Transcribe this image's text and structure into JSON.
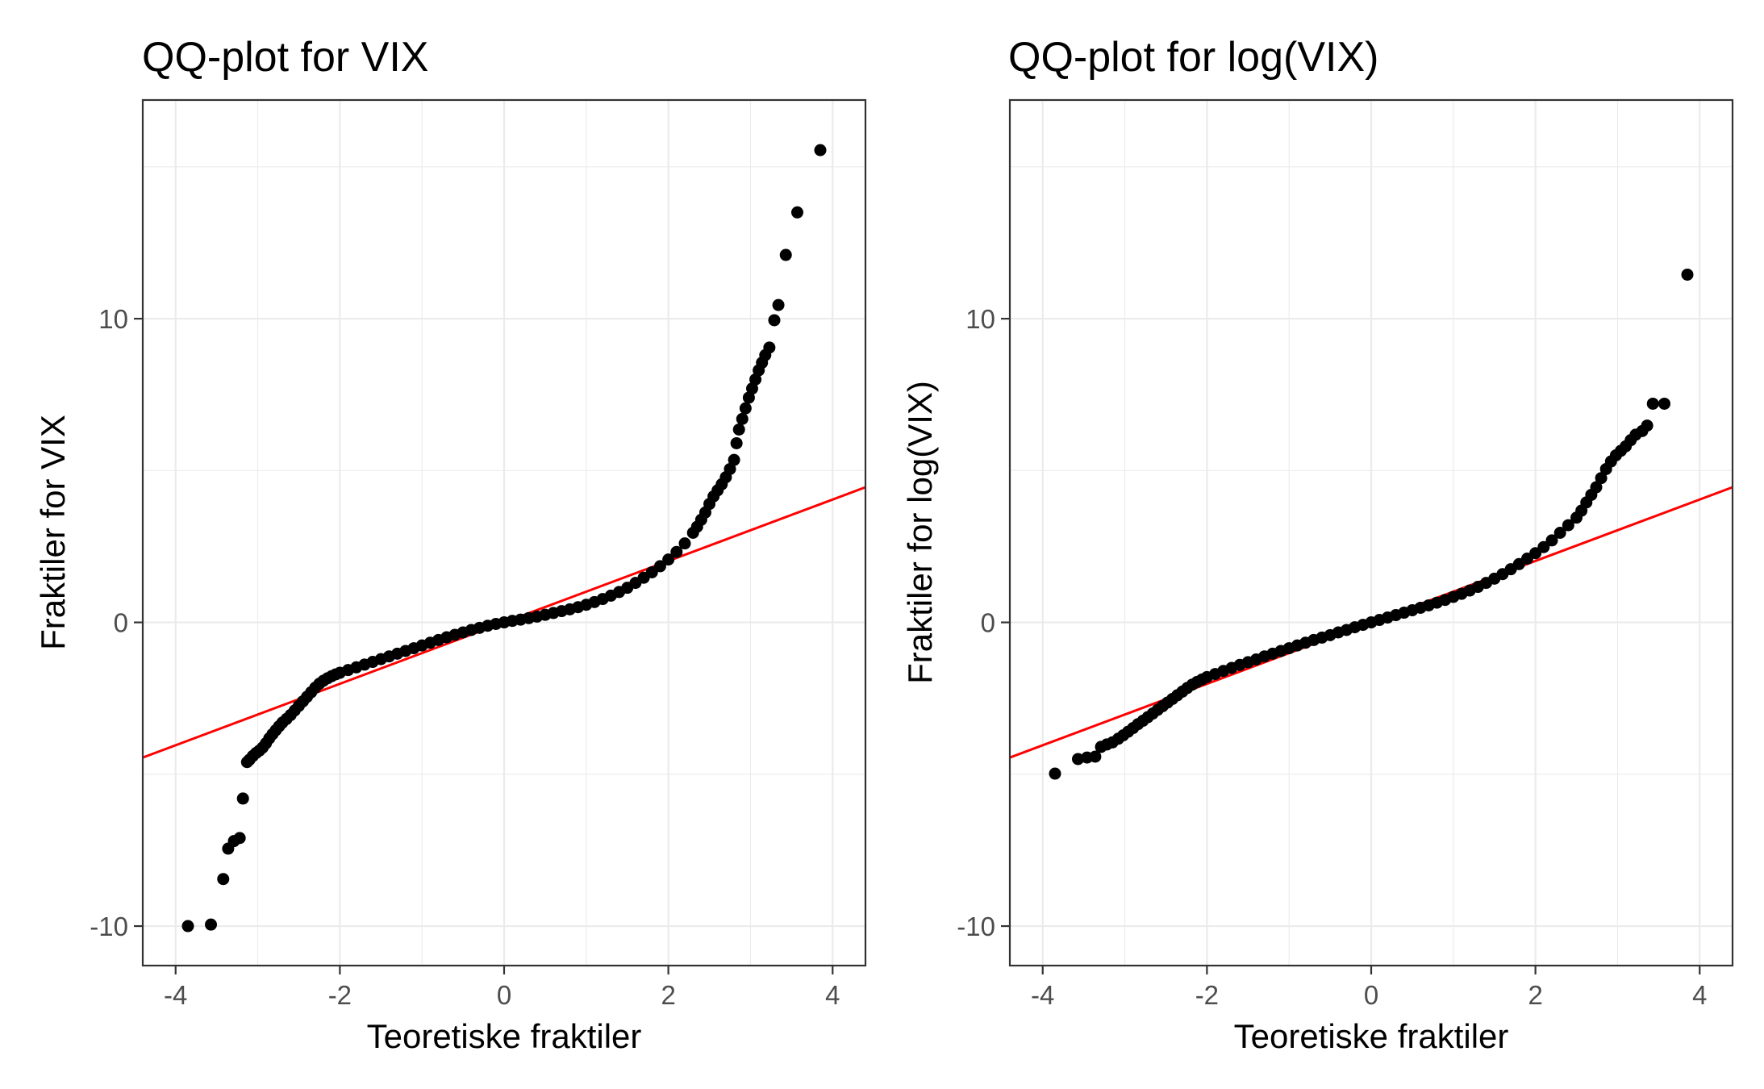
{
  "chart_data": [
    {
      "type": "scatter",
      "title": "QQ-plot for VIX",
      "xlabel": "Teoretiske fraktiler",
      "ylabel": "Fraktiler for VIX",
      "xlim": [
        -4.4,
        4.4
      ],
      "ylim": [
        -11.3,
        17.2
      ],
      "x_ticks": [
        -4,
        -2,
        0,
        2,
        4
      ],
      "x_tick_labels": [
        "-4",
        "-2",
        "0",
        "2",
        "4"
      ],
      "y_ticks": [
        -10,
        0,
        10
      ],
      "y_tick_labels": [
        "-10",
        "0",
        "10"
      ],
      "grid": true,
      "legend": "none",
      "series": [
        {
          "kind": "points",
          "color": "#000000",
          "points": [
            [
              -3.85,
              -10.0
            ],
            [
              -3.57,
              -9.95
            ],
            [
              -3.42,
              -8.45
            ],
            [
              -3.36,
              -7.45
            ],
            [
              -3.29,
              -7.2
            ],
            [
              -3.22,
              -7.1
            ],
            [
              -3.18,
              -5.8
            ],
            [
              -3.13,
              -4.6
            ],
            [
              -3.1,
              -4.52
            ],
            [
              -3.06,
              -4.4
            ],
            [
              -3.02,
              -4.3
            ],
            [
              -2.98,
              -4.22
            ],
            [
              -2.94,
              -4.12
            ],
            [
              -2.9,
              -3.98
            ],
            [
              -2.86,
              -3.82
            ],
            [
              -2.82,
              -3.68
            ],
            [
              -2.78,
              -3.55
            ],
            [
              -2.74,
              -3.42
            ],
            [
              -2.7,
              -3.3
            ],
            [
              -2.65,
              -3.18
            ],
            [
              -2.6,
              -3.05
            ],
            [
              -2.55,
              -2.9
            ],
            [
              -2.5,
              -2.75
            ],
            [
              -2.45,
              -2.6
            ],
            [
              -2.4,
              -2.45
            ],
            [
              -2.35,
              -2.3
            ],
            [
              -2.3,
              -2.15
            ],
            [
              -2.25,
              -2.02
            ],
            [
              -2.2,
              -1.92
            ],
            [
              -2.15,
              -1.84
            ],
            [
              -2.1,
              -1.77
            ],
            [
              -2.05,
              -1.71
            ],
            [
              -2.0,
              -1.66
            ],
            [
              -1.9,
              -1.57
            ],
            [
              -1.8,
              -1.48
            ],
            [
              -1.7,
              -1.39
            ],
            [
              -1.6,
              -1.3
            ],
            [
              -1.5,
              -1.21
            ],
            [
              -1.4,
              -1.12
            ],
            [
              -1.3,
              -1.03
            ],
            [
              -1.2,
              -0.94
            ],
            [
              -1.1,
              -0.85
            ],
            [
              -1.0,
              -0.76
            ],
            [
              -0.9,
              -0.67
            ],
            [
              -0.8,
              -0.58
            ],
            [
              -0.7,
              -0.49
            ],
            [
              -0.6,
              -0.41
            ],
            [
              -0.5,
              -0.33
            ],
            [
              -0.4,
              -0.25
            ],
            [
              -0.3,
              -0.18
            ],
            [
              -0.2,
              -0.11
            ],
            [
              -0.1,
              -0.05
            ],
            [
              0.0,
              0.0
            ],
            [
              0.1,
              0.05
            ],
            [
              0.2,
              0.09
            ],
            [
              0.3,
              0.14
            ],
            [
              0.4,
              0.19
            ],
            [
              0.5,
              0.25
            ],
            [
              0.6,
              0.31
            ],
            [
              0.7,
              0.37
            ],
            [
              0.8,
              0.43
            ],
            [
              0.9,
              0.5
            ],
            [
              1.0,
              0.58
            ],
            [
              1.1,
              0.67
            ],
            [
              1.2,
              0.77
            ],
            [
              1.3,
              0.88
            ],
            [
              1.4,
              1.0
            ],
            [
              1.5,
              1.14
            ],
            [
              1.6,
              1.3
            ],
            [
              1.7,
              1.47
            ],
            [
              1.8,
              1.65
            ],
            [
              1.9,
              1.85
            ],
            [
              2.0,
              2.07
            ],
            [
              2.1,
              2.32
            ],
            [
              2.2,
              2.6
            ],
            [
              2.3,
              2.95
            ],
            [
              2.35,
              3.15
            ],
            [
              2.4,
              3.38
            ],
            [
              2.45,
              3.62
            ],
            [
              2.5,
              3.9
            ],
            [
              2.55,
              4.15
            ],
            [
              2.6,
              4.35
            ],
            [
              2.65,
              4.55
            ],
            [
              2.7,
              4.78
            ],
            [
              2.75,
              5.05
            ],
            [
              2.8,
              5.35
            ],
            [
              2.83,
              5.9
            ],
            [
              2.86,
              6.35
            ],
            [
              2.9,
              6.7
            ],
            [
              2.94,
              7.05
            ],
            [
              2.98,
              7.4
            ],
            [
              3.02,
              7.7
            ],
            [
              3.06,
              8.0
            ],
            [
              3.1,
              8.3
            ],
            [
              3.14,
              8.55
            ],
            [
              3.18,
              8.8
            ],
            [
              3.23,
              9.05
            ],
            [
              3.29,
              9.95
            ],
            [
              3.34,
              10.45
            ],
            [
              3.43,
              12.1
            ],
            [
              3.57,
              13.5
            ],
            [
              3.85,
              15.55
            ]
          ]
        },
        {
          "kind": "reference-line",
          "color": "#ff0000",
          "from": [
            -4.4,
            -4.45
          ],
          "to": [
            4.4,
            4.45
          ]
        }
      ]
    },
    {
      "type": "scatter",
      "title": "QQ-plot for log(VIX)",
      "xlabel": "Teoretiske fraktiler",
      "ylabel": "Fraktiler for log(VIX)",
      "xlim": [
        -4.4,
        4.4
      ],
      "ylim": [
        -11.3,
        17.2
      ],
      "x_ticks": [
        -4,
        -2,
        0,
        2,
        4
      ],
      "x_tick_labels": [
        "-4",
        "-2",
        "0",
        "2",
        "4"
      ],
      "y_ticks": [
        -10,
        0,
        10
      ],
      "y_tick_labels": [
        "-10",
        "0",
        "10"
      ],
      "grid": true,
      "legend": "none",
      "series": [
        {
          "kind": "points",
          "color": "#000000",
          "points": [
            [
              -3.85,
              -4.98
            ],
            [
              -3.57,
              -4.5
            ],
            [
              -3.46,
              -4.45
            ],
            [
              -3.36,
              -4.42
            ],
            [
              -3.29,
              -4.1
            ],
            [
              -3.22,
              -4.02
            ],
            [
              -3.15,
              -3.95
            ],
            [
              -3.08,
              -3.83
            ],
            [
              -3.02,
              -3.72
            ],
            [
              -2.96,
              -3.6
            ],
            [
              -2.9,
              -3.48
            ],
            [
              -2.84,
              -3.35
            ],
            [
              -2.78,
              -3.24
            ],
            [
              -2.72,
              -3.12
            ],
            [
              -2.66,
              -3.0
            ],
            [
              -2.6,
              -2.88
            ],
            [
              -2.54,
              -2.76
            ],
            [
              -2.48,
              -2.64
            ],
            [
              -2.42,
              -2.52
            ],
            [
              -2.36,
              -2.4
            ],
            [
              -2.3,
              -2.28
            ],
            [
              -2.24,
              -2.16
            ],
            [
              -2.18,
              -2.05
            ],
            [
              -2.12,
              -1.96
            ],
            [
              -2.06,
              -1.88
            ],
            [
              -2.0,
              -1.8
            ],
            [
              -1.9,
              -1.7
            ],
            [
              -1.8,
              -1.6
            ],
            [
              -1.7,
              -1.5
            ],
            [
              -1.6,
              -1.4
            ],
            [
              -1.5,
              -1.31
            ],
            [
              -1.4,
              -1.22
            ],
            [
              -1.3,
              -1.12
            ],
            [
              -1.2,
              -1.03
            ],
            [
              -1.1,
              -0.94
            ],
            [
              -1.0,
              -0.85
            ],
            [
              -0.9,
              -0.76
            ],
            [
              -0.8,
              -0.67
            ],
            [
              -0.7,
              -0.58
            ],
            [
              -0.6,
              -0.5
            ],
            [
              -0.5,
              -0.42
            ],
            [
              -0.4,
              -0.33
            ],
            [
              -0.3,
              -0.25
            ],
            [
              -0.2,
              -0.16
            ],
            [
              -0.1,
              -0.08
            ],
            [
              0.0,
              0.0
            ],
            [
              0.1,
              0.08
            ],
            [
              0.2,
              0.16
            ],
            [
              0.3,
              0.24
            ],
            [
              0.4,
              0.32
            ],
            [
              0.5,
              0.4
            ],
            [
              0.6,
              0.48
            ],
            [
              0.7,
              0.56
            ],
            [
              0.8,
              0.65
            ],
            [
              0.9,
              0.74
            ],
            [
              1.0,
              0.84
            ],
            [
              1.1,
              0.94
            ],
            [
              1.2,
              1.05
            ],
            [
              1.3,
              1.17
            ],
            [
              1.4,
              1.3
            ],
            [
              1.5,
              1.44
            ],
            [
              1.6,
              1.59
            ],
            [
              1.7,
              1.75
            ],
            [
              1.8,
              1.92
            ],
            [
              1.9,
              2.1
            ],
            [
              2.0,
              2.28
            ],
            [
              2.1,
              2.48
            ],
            [
              2.2,
              2.7
            ],
            [
              2.3,
              2.95
            ],
            [
              2.4,
              3.2
            ],
            [
              2.5,
              3.45
            ],
            [
              2.56,
              3.68
            ],
            [
              2.62,
              3.95
            ],
            [
              2.68,
              4.2
            ],
            [
              2.74,
              4.45
            ],
            [
              2.8,
              4.75
            ],
            [
              2.86,
              5.05
            ],
            [
              2.92,
              5.3
            ],
            [
              2.98,
              5.5
            ],
            [
              3.04,
              5.65
            ],
            [
              3.1,
              5.8
            ],
            [
              3.16,
              6.0
            ],
            [
              3.22,
              6.18
            ],
            [
              3.3,
              6.3
            ],
            [
              3.36,
              6.48
            ],
            [
              3.43,
              7.2
            ],
            [
              3.57,
              7.2
            ],
            [
              3.85,
              11.45
            ]
          ]
        },
        {
          "kind": "reference-line",
          "color": "#ff0000",
          "from": [
            -4.4,
            -4.45
          ],
          "to": [
            4.4,
            4.45
          ]
        }
      ]
    }
  ]
}
